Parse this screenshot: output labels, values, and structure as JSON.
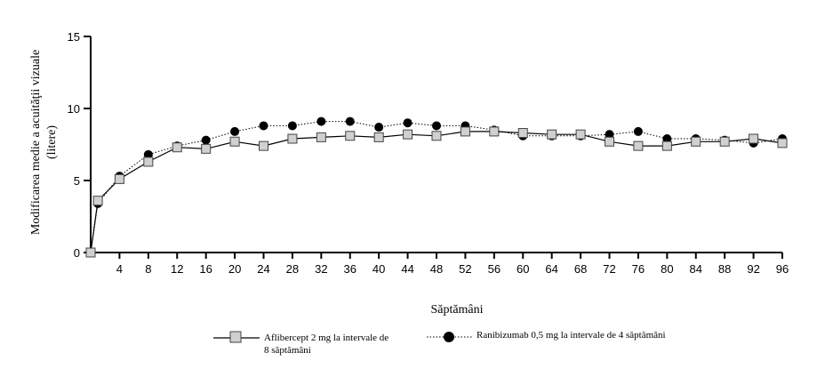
{
  "chart_data": {
    "type": "line",
    "xlabel": "Săptămâni",
    "ylabel_lines": [
      "Modificarea medie a acuităţii vizuale",
      "(litere)"
    ],
    "xlim": [
      0,
      96
    ],
    "ylim": [
      0,
      15
    ],
    "xticks": [
      4,
      8,
      12,
      16,
      20,
      24,
      28,
      32,
      36,
      40,
      44,
      48,
      52,
      56,
      60,
      64,
      68,
      72,
      76,
      80,
      84,
      88,
      92,
      96
    ],
    "yticks": [
      0,
      5,
      10,
      15
    ],
    "grid": false,
    "legend_position": "bottom",
    "x": [
      0,
      1,
      4,
      8,
      12,
      16,
      20,
      24,
      28,
      32,
      36,
      40,
      44,
      48,
      52,
      56,
      60,
      64,
      68,
      72,
      76,
      80,
      84,
      88,
      92,
      96
    ],
    "series": [
      {
        "name_lines": [
          "Aflibercept 2 mg la intervale de",
          "8 săptămâni"
        ],
        "marker": "square",
        "line_style": "solid",
        "values": [
          0,
          3.6,
          5.1,
          6.3,
          7.3,
          7.2,
          7.7,
          7.4,
          7.9,
          8.0,
          8.1,
          8.0,
          8.2,
          8.1,
          8.4,
          8.4,
          8.3,
          8.2,
          8.2,
          7.7,
          7.4,
          7.4,
          7.7,
          7.7,
          7.9,
          7.6
        ]
      },
      {
        "name_lines": [
          "Ranibizumab 0,5 mg la intervale de 4 săptămâni"
        ],
        "marker": "circle",
        "line_style": "dotted",
        "values": [
          0,
          3.4,
          5.3,
          6.8,
          7.4,
          7.8,
          8.4,
          8.8,
          8.8,
          9.1,
          9.1,
          8.7,
          9.0,
          8.8,
          8.8,
          8.5,
          8.1,
          8.1,
          8.1,
          8.2,
          8.4,
          7.9,
          7.9,
          7.8,
          7.6,
          7.9
        ]
      }
    ]
  }
}
